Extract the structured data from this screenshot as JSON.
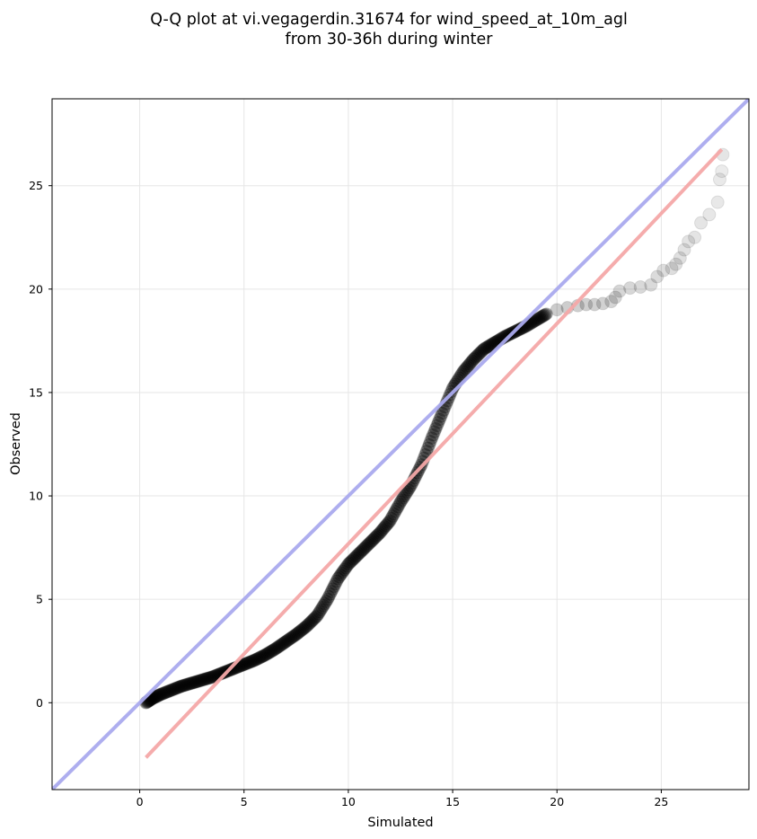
{
  "chart_data": {
    "type": "scatter",
    "title_lines": [
      "Q-Q plot at vi.vegagerdin.31674 for wind_speed_at_10m_agl",
      "from 30-36h during winter"
    ],
    "xlabel": "Simulated",
    "ylabel": "Observed",
    "xlim": [
      -4.2,
      29.2
    ],
    "ylim": [
      -4.2,
      29.2
    ],
    "xticks": [
      0,
      5,
      10,
      15,
      20,
      25
    ],
    "yticks": [
      0,
      5,
      10,
      15,
      20,
      25
    ],
    "grid": true,
    "colors": {
      "points": "#000000",
      "identity_line": "#aaaaee",
      "fit_line": "#f4a8a8",
      "grid": "#e6e6e6"
    },
    "identity_line": {
      "x": [
        -4.2,
        29.2
      ],
      "y": [
        -4.2,
        29.2
      ]
    },
    "fit_line": {
      "x": [
        0.3,
        27.9
      ],
      "y": [
        -2.65,
        26.75
      ]
    },
    "quantile_curve": {
      "x": [
        0.3,
        0.6,
        1.0,
        1.5,
        2.0,
        2.5,
        3.0,
        3.5,
        4.0,
        4.5,
        5.0,
        5.5,
        6.0,
        6.5,
        7.0,
        7.5,
        8.0,
        8.5,
        9.0,
        9.5,
        10.0,
        10.5,
        11.0,
        11.5,
        12.0,
        12.5,
        13.0,
        13.5,
        14.0,
        14.5,
        15.0,
        15.5,
        16.0,
        16.5,
        17.0,
        17.5,
        18.0,
        18.5,
        19.0,
        19.5
      ],
      "y": [
        0.0,
        0.2,
        0.4,
        0.6,
        0.8,
        0.95,
        1.1,
        1.25,
        1.45,
        1.65,
        1.85,
        2.05,
        2.3,
        2.6,
        2.95,
        3.3,
        3.7,
        4.2,
        5.0,
        6.0,
        6.7,
        7.2,
        7.7,
        8.2,
        8.8,
        9.7,
        10.5,
        11.5,
        12.8,
        14.0,
        15.2,
        16.0,
        16.6,
        17.1,
        17.4,
        17.7,
        17.95,
        18.2,
        18.5,
        18.8
      ]
    },
    "tail_points": {
      "x": [
        20.0,
        20.5,
        21.0,
        21.4,
        21.8,
        22.2,
        22.6,
        22.8,
        23.0,
        23.5,
        24.0,
        24.5,
        24.8,
        25.1,
        25.5,
        25.7,
        25.9,
        26.1,
        26.3,
        26.6,
        26.9,
        27.3,
        27.7,
        27.8,
        27.9
      ],
      "y": [
        19.0,
        19.1,
        19.2,
        19.25,
        19.25,
        19.3,
        19.4,
        19.6,
        19.9,
        20.05,
        20.1,
        20.2,
        20.6,
        20.9,
        21.0,
        21.2,
        21.5,
        21.9,
        22.3,
        22.5,
        23.2,
        23.6,
        24.2,
        25.3,
        25.7
      ]
    },
    "top_points": {
      "x": [
        27.95
      ],
      "y": [
        26.5
      ]
    }
  }
}
